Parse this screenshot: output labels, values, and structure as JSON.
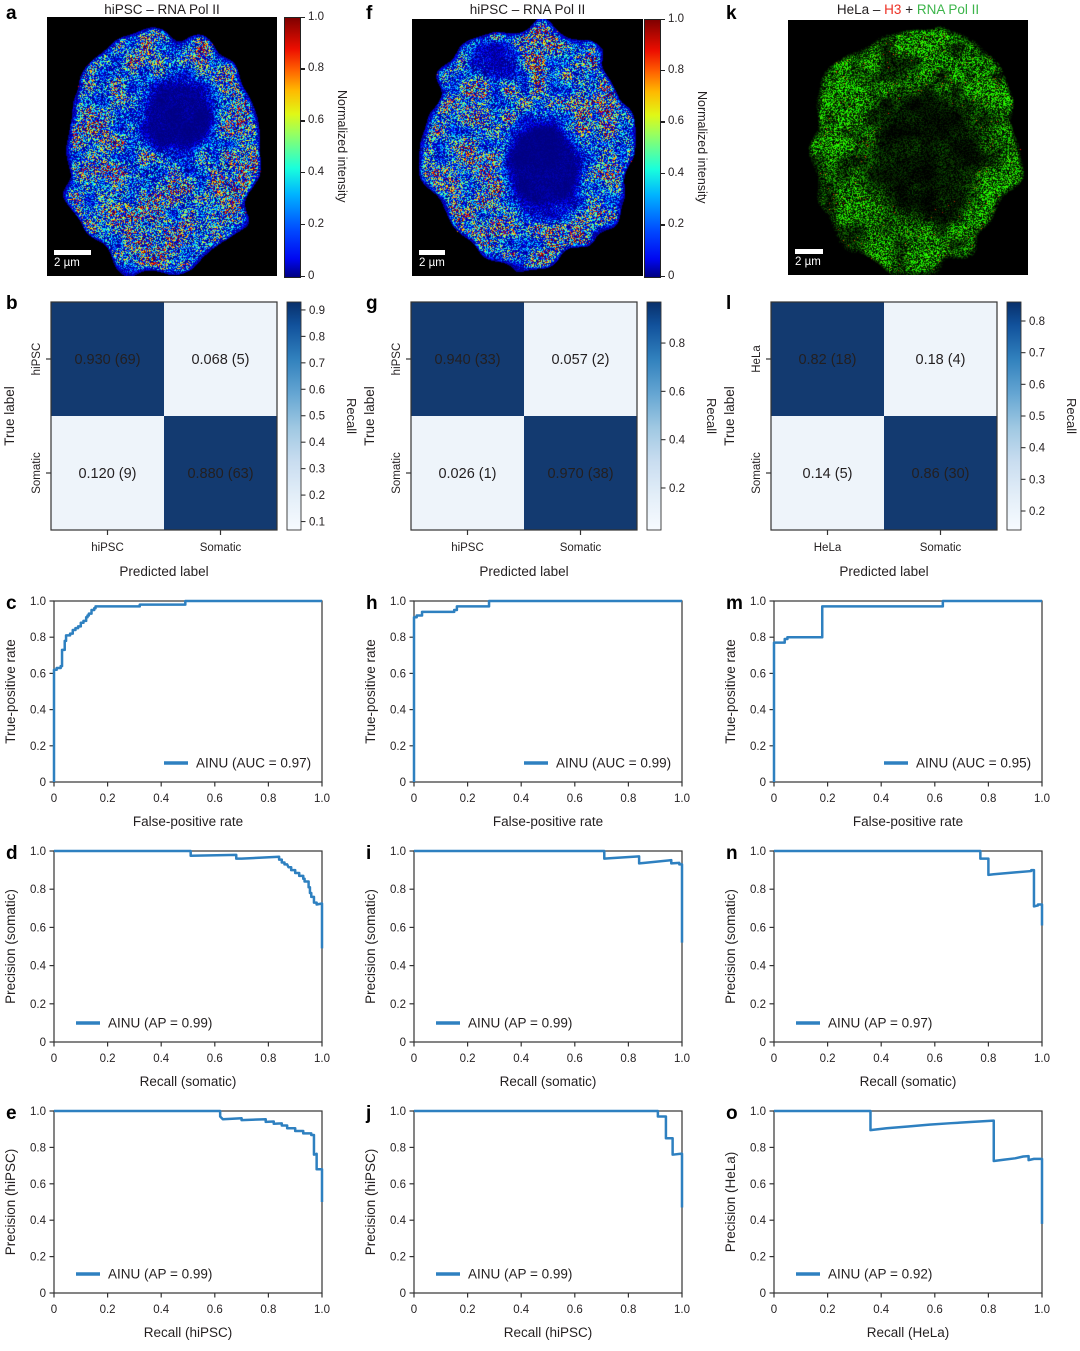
{
  "colors": {
    "curve_blue": "#2e80c0",
    "cm_dark_cell": "#133a70",
    "cm_light_cell": "#eef4fa",
    "cm_text_on_dark": "#e8eef6",
    "cm_text_on_light": "#1d4f8c",
    "title_red": "#ed3024",
    "title_green": "#3cb54a",
    "text": "#231f20"
  },
  "axis_ticks": [
    "0",
    "0.2",
    "0.4",
    "0.6",
    "0.8",
    "1.0"
  ],
  "chart_data": [
    {
      "panel": "a",
      "type": "image",
      "title": "hiPSC – RNA Pol II",
      "scale_bar": "2 µm",
      "colorbar": {
        "label": "Normalized intensity",
        "colormap": "jet",
        "ticks": [
          "1.0",
          "0.8",
          "0.6",
          "0.4",
          "0.2",
          "0"
        ]
      }
    },
    {
      "panel": "f",
      "type": "image",
      "title": "hiPSC – RNA Pol II",
      "scale_bar": "2 µm",
      "colorbar": {
        "label": "Normalized intensity",
        "colormap": "jet",
        "ticks": [
          "1.0",
          "0.8",
          "0.6",
          "0.4",
          "0.2",
          "0"
        ]
      }
    },
    {
      "panel": "k",
      "type": "image",
      "title_parts": [
        {
          "text": "HeLa – ",
          "color": "#231f20"
        },
        {
          "text": "H3",
          "color": "#ed3024"
        },
        {
          "text": " + ",
          "color": "#231f20"
        },
        {
          "text": "RNA Pol II",
          "color": "#3cb54a"
        }
      ],
      "scale_bar": "2 µm"
    },
    {
      "panel": "b",
      "type": "heatmap",
      "rows": [
        "hiPSC",
        "Somatic"
      ],
      "cols": [
        "hiPSC",
        "Somatic"
      ],
      "xlabel": "Predicted label",
      "ylabel": "True label",
      "cell_labels": [
        [
          "0.930 (69)",
          "0.068 (5)"
        ],
        [
          "0.120 (9)",
          "0.880 (63)"
        ]
      ],
      "values": [
        [
          0.93,
          0.068
        ],
        [
          0.12,
          0.88
        ]
      ],
      "colorbar": {
        "label": "Recall",
        "colormap": "Blues",
        "vmin": 0.068,
        "vmax": 0.93,
        "ticks": [
          "0.9",
          "0.8",
          "0.7",
          "0.6",
          "0.5",
          "0.4",
          "0.3",
          "0.2",
          "0.1"
        ]
      }
    },
    {
      "panel": "g",
      "type": "heatmap",
      "rows": [
        "hiPSC",
        "Somatic"
      ],
      "cols": [
        "hiPSC",
        "Somatic"
      ],
      "xlabel": "Predicted label",
      "ylabel": "True label",
      "cell_labels": [
        [
          "0.940 (33)",
          "0.057 (2)"
        ],
        [
          "0.026 (1)",
          "0.970 (38)"
        ]
      ],
      "values": [
        [
          0.94,
          0.057
        ],
        [
          0.026,
          0.97
        ]
      ],
      "colorbar": {
        "label": "Recall",
        "colormap": "Blues",
        "vmin": 0.026,
        "vmax": 0.97,
        "ticks": [
          "0.8",
          "0.6",
          "0.4",
          "0.2"
        ]
      }
    },
    {
      "panel": "l",
      "type": "heatmap",
      "rows": [
        "HeLa",
        "Somatic"
      ],
      "cols": [
        "HeLa",
        "Somatic"
      ],
      "xlabel": "Predicted label",
      "ylabel": "True label",
      "cell_labels": [
        [
          "0.82 (18)",
          "0.18 (4)"
        ],
        [
          "0.14 (5)",
          "0.86 (30)"
        ]
      ],
      "values": [
        [
          0.82,
          0.18
        ],
        [
          0.14,
          0.86
        ]
      ],
      "colorbar": {
        "label": "Recall",
        "colormap": "Blues",
        "vmin": 0.14,
        "vmax": 0.86,
        "ticks": [
          "0.8",
          "0.7",
          "0.6",
          "0.5",
          "0.4",
          "0.3",
          "0.2"
        ]
      }
    },
    {
      "panel": "c",
      "type": "line",
      "xlabel": "False-positive rate",
      "ylabel": "True-positive rate",
      "legend": "AINU (AUC = 0.97)",
      "legend_pos": "lower right",
      "xlim": [
        0,
        1
      ],
      "ylim": [
        0,
        1
      ],
      "points": [
        [
          0,
          0
        ],
        [
          0,
          0.62
        ],
        [
          0.01,
          0.62
        ],
        [
          0.01,
          0.63
        ],
        [
          0.025,
          0.63
        ],
        [
          0.025,
          0.64
        ],
        [
          0.03,
          0.64
        ],
        [
          0.03,
          0.73
        ],
        [
          0.04,
          0.73
        ],
        [
          0.04,
          0.78
        ],
        [
          0.045,
          0.78
        ],
        [
          0.045,
          0.81
        ],
        [
          0.06,
          0.81
        ],
        [
          0.06,
          0.82
        ],
        [
          0.07,
          0.82
        ],
        [
          0.07,
          0.84
        ],
        [
          0.08,
          0.84
        ],
        [
          0.08,
          0.85
        ],
        [
          0.09,
          0.85
        ],
        [
          0.09,
          0.86
        ],
        [
          0.1,
          0.86
        ],
        [
          0.1,
          0.88
        ],
        [
          0.11,
          0.88
        ],
        [
          0.11,
          0.89
        ],
        [
          0.12,
          0.89
        ],
        [
          0.12,
          0.91
        ],
        [
          0.125,
          0.91
        ],
        [
          0.125,
          0.92
        ],
        [
          0.13,
          0.92
        ],
        [
          0.13,
          0.93
        ],
        [
          0.14,
          0.93
        ],
        [
          0.14,
          0.95
        ],
        [
          0.15,
          0.95
        ],
        [
          0.15,
          0.96
        ],
        [
          0.155,
          0.96
        ],
        [
          0.155,
          0.97
        ],
        [
          0.32,
          0.97
        ],
        [
          0.32,
          0.98
        ],
        [
          0.49,
          0.98
        ],
        [
          0.49,
          1
        ],
        [
          1,
          1
        ]
      ]
    },
    {
      "panel": "h",
      "type": "line",
      "xlabel": "False-positive rate",
      "ylabel": "True-positive rate",
      "legend": "AINU (AUC = 0.99)",
      "legend_pos": "lower right",
      "xlim": [
        0,
        1
      ],
      "ylim": [
        0,
        1
      ],
      "points": [
        [
          0,
          0
        ],
        [
          0,
          0.91
        ],
        [
          0.01,
          0.91
        ],
        [
          0.01,
          0.92
        ],
        [
          0.03,
          0.92
        ],
        [
          0.03,
          0.94
        ],
        [
          0.15,
          0.94
        ],
        [
          0.15,
          0.95
        ],
        [
          0.16,
          0.95
        ],
        [
          0.16,
          0.97
        ],
        [
          0.28,
          0.97
        ],
        [
          0.28,
          1
        ],
        [
          1,
          1
        ]
      ]
    },
    {
      "panel": "m",
      "type": "line",
      "xlabel": "False-positive rate",
      "ylabel": "True-positive rate",
      "legend": "AINU (AUC = 0.95)",
      "legend_pos": "lower right",
      "xlim": [
        0,
        1
      ],
      "ylim": [
        0,
        1
      ],
      "points": [
        [
          0,
          0
        ],
        [
          0,
          0.77
        ],
        [
          0.04,
          0.77
        ],
        [
          0.04,
          0.79
        ],
        [
          0.05,
          0.79
        ],
        [
          0.05,
          0.8
        ],
        [
          0.18,
          0.8
        ],
        [
          0.18,
          0.97
        ],
        [
          0.63,
          0.97
        ],
        [
          0.63,
          1
        ],
        [
          1,
          1
        ]
      ]
    },
    {
      "panel": "d",
      "type": "line",
      "xlabel": "Recall (somatic)",
      "ylabel": "Precision (somatic)",
      "legend": "AINU (AP = 0.99)",
      "legend_pos": "lower left",
      "xlim": [
        0,
        1
      ],
      "ylim": [
        0,
        1
      ],
      "points": [
        [
          0,
          1
        ],
        [
          0.51,
          1
        ],
        [
          0.51,
          0.975
        ],
        [
          0.68,
          0.98
        ],
        [
          0.68,
          0.96
        ],
        [
          0.7,
          0.96
        ],
        [
          0.84,
          0.97
        ],
        [
          0.84,
          0.955
        ],
        [
          0.85,
          0.955
        ],
        [
          0.85,
          0.94
        ],
        [
          0.86,
          0.94
        ],
        [
          0.86,
          0.93
        ],
        [
          0.87,
          0.93
        ],
        [
          0.875,
          0.915
        ],
        [
          0.885,
          0.915
        ],
        [
          0.885,
          0.9
        ],
        [
          0.9,
          0.9
        ],
        [
          0.9,
          0.885
        ],
        [
          0.915,
          0.885
        ],
        [
          0.915,
          0.87
        ],
        [
          0.93,
          0.87
        ],
        [
          0.93,
          0.855
        ],
        [
          0.935,
          0.855
        ],
        [
          0.935,
          0.84
        ],
        [
          0.95,
          0.84
        ],
        [
          0.95,
          0.81
        ],
        [
          0.955,
          0.81
        ],
        [
          0.955,
          0.78
        ],
        [
          0.96,
          0.78
        ],
        [
          0.96,
          0.76
        ],
        [
          0.97,
          0.76
        ],
        [
          0.97,
          0.73
        ],
        [
          0.98,
          0.73
        ],
        [
          0.98,
          0.72
        ],
        [
          1,
          0.725
        ],
        [
          1,
          0.49
        ]
      ]
    },
    {
      "panel": "i",
      "type": "line",
      "xlabel": "Recall (somatic)",
      "ylabel": "Precision (somatic)",
      "legend": "AINU (AP = 0.99)",
      "legend_pos": "lower left",
      "xlim": [
        0,
        1
      ],
      "ylim": [
        0,
        1
      ],
      "points": [
        [
          0,
          1
        ],
        [
          0.71,
          1
        ],
        [
          0.71,
          0.96
        ],
        [
          0.73,
          0.962
        ],
        [
          0.84,
          0.972
        ],
        [
          0.84,
          0.935
        ],
        [
          0.86,
          0.938
        ],
        [
          0.96,
          0.952
        ],
        [
          0.96,
          0.935
        ],
        [
          0.99,
          0.938
        ],
        [
          0.99,
          0.93
        ],
        [
          1,
          0.93
        ],
        [
          1,
          0.52
        ]
      ]
    },
    {
      "panel": "n",
      "type": "line",
      "xlabel": "Recall (somatic)",
      "ylabel": "Precision (somatic)",
      "legend": "AINU (AP = 0.97)",
      "legend_pos": "lower left",
      "xlim": [
        0,
        1
      ],
      "ylim": [
        0,
        1
      ],
      "points": [
        [
          0,
          1
        ],
        [
          0.77,
          1
        ],
        [
          0.77,
          0.96
        ],
        [
          0.8,
          0.96
        ],
        [
          0.8,
          0.875
        ],
        [
          0.82,
          0.878
        ],
        [
          0.9,
          0.888
        ],
        [
          0.96,
          0.895
        ],
        [
          0.96,
          0.9
        ],
        [
          0.97,
          0.9
        ],
        [
          0.97,
          0.71
        ],
        [
          0.985,
          0.715
        ],
        [
          0.985,
          0.72
        ],
        [
          1,
          0.72
        ],
        [
          1,
          0.61
        ]
      ]
    },
    {
      "panel": "e",
      "type": "line",
      "xlabel": "Recall (hiPSC)",
      "ylabel": "Precision (hiPSC)",
      "legend": "AINU (AP = 0.99)",
      "legend_pos": "lower left",
      "xlim": [
        0,
        1
      ],
      "ylim": [
        0,
        1
      ],
      "points": [
        [
          0,
          1
        ],
        [
          0.62,
          1
        ],
        [
          0.62,
          0.97
        ],
        [
          0.63,
          0.955
        ],
        [
          0.7,
          0.96
        ],
        [
          0.7,
          0.95
        ],
        [
          0.79,
          0.955
        ],
        [
          0.79,
          0.94
        ],
        [
          0.82,
          0.942
        ],
        [
          0.82,
          0.93
        ],
        [
          0.85,
          0.932
        ],
        [
          0.85,
          0.92
        ],
        [
          0.87,
          0.92
        ],
        [
          0.87,
          0.905
        ],
        [
          0.9,
          0.905
        ],
        [
          0.9,
          0.89
        ],
        [
          0.93,
          0.89
        ],
        [
          0.93,
          0.877
        ],
        [
          0.96,
          0.877
        ],
        [
          0.96,
          0.868
        ],
        [
          0.97,
          0.868
        ],
        [
          0.97,
          0.76
        ],
        [
          0.98,
          0.765
        ],
        [
          0.98,
          0.68
        ],
        [
          1,
          0.68
        ],
        [
          1,
          0.5
        ]
      ]
    },
    {
      "panel": "j",
      "type": "line",
      "xlabel": "Recall (hiPSC)",
      "ylabel": "Precision (hiPSC)",
      "legend": "AINU (AP = 0.99)",
      "legend_pos": "lower left",
      "xlim": [
        0,
        1
      ],
      "ylim": [
        0,
        1
      ],
      "points": [
        [
          0,
          1
        ],
        [
          0.91,
          1
        ],
        [
          0.91,
          0.97
        ],
        [
          0.94,
          0.97
        ],
        [
          0.94,
          0.85
        ],
        [
          0.965,
          0.85
        ],
        [
          0.965,
          0.76
        ],
        [
          0.995,
          0.765
        ],
        [
          1,
          0.765
        ],
        [
          1,
          0.47
        ]
      ]
    },
    {
      "panel": "o",
      "type": "line",
      "xlabel": "Recall (HeLa)",
      "ylabel": "Precision (HeLa)",
      "legend": "AINU (AP = 0.92)",
      "legend_pos": "lower left",
      "xlim": [
        0,
        1
      ],
      "ylim": [
        0,
        1
      ],
      "points": [
        [
          0,
          1
        ],
        [
          0.36,
          1
        ],
        [
          0.36,
          0.895
        ],
        [
          0.42,
          0.905
        ],
        [
          0.5,
          0.915
        ],
        [
          0.58,
          0.925
        ],
        [
          0.66,
          0.933
        ],
        [
          0.74,
          0.94
        ],
        [
          0.82,
          0.947
        ],
        [
          0.82,
          0.725
        ],
        [
          0.86,
          0.733
        ],
        [
          0.9,
          0.74
        ],
        [
          0.93,
          0.75
        ],
        [
          0.95,
          0.752
        ],
        [
          0.95,
          0.73
        ],
        [
          0.97,
          0.737
        ],
        [
          1,
          0.737
        ],
        [
          1,
          0.38
        ]
      ]
    }
  ]
}
